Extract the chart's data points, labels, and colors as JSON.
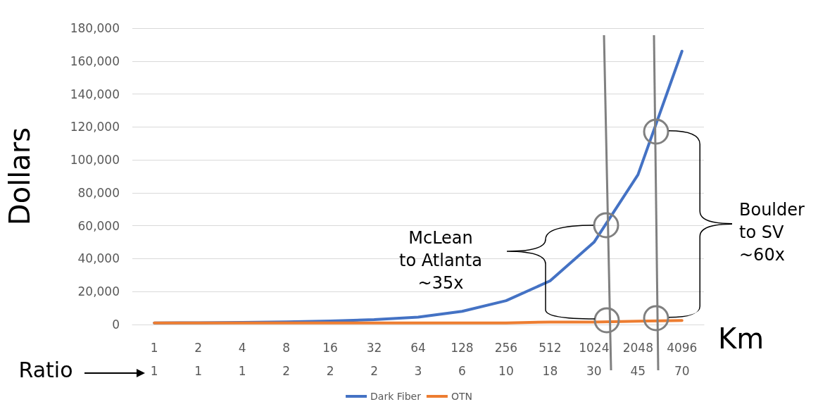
{
  "chart_data": {
    "type": "line",
    "ylabel": "Dollars",
    "xlabel": "Km",
    "categories": [
      "1",
      "2",
      "4",
      "8",
      "16",
      "32",
      "64",
      "128",
      "256",
      "512",
      "1024",
      "2048",
      "4096"
    ],
    "series": [
      {
        "name": "Dark Fiber",
        "color": "#4472c4",
        "values": [
          1000,
          1100,
          1300,
          1600,
          2100,
          3000,
          4500,
          8000,
          14500,
          26500,
          50000,
          91000,
          166000
        ]
      },
      {
        "name": "OTN",
        "color": "#ed7d31",
        "values": [
          1000,
          1000,
          1000,
          1000,
          1000,
          1000,
          1000,
          1000,
          1000,
          1500,
          1500,
          2000,
          2500
        ]
      }
    ],
    "ylim": [
      0,
      180000
    ],
    "yticks": [
      0,
      {
        "value": 20000,
        "label": "20,000"
      },
      {
        "value": 40000,
        "label": "40,000"
      },
      {
        "value": 60000,
        "label": "60,000"
      },
      {
        "value": 80000,
        "label": "80,000"
      },
      {
        "value": 100000,
        "label": "100,000"
      },
      {
        "value": 120000,
        "label": "120,000"
      },
      {
        "value": 140000,
        "label": "140,000"
      },
      {
        "value": 160000,
        "label": "160,000"
      },
      {
        "value": 180000,
        "label": "180,000"
      }
    ],
    "grid": "y",
    "legend": "bottom",
    "marker": "none",
    "line_style": "solid",
    "annotations": [
      "Ratio",
      "McLean\nto Atlanta\n~35x",
      "Boulder\nto SV\n~60x",
      "1",
      "1",
      "1",
      "2",
      "2",
      "2",
      "3",
      "6",
      "10",
      "18",
      "30",
      "45",
      "70"
    ]
  }
}
